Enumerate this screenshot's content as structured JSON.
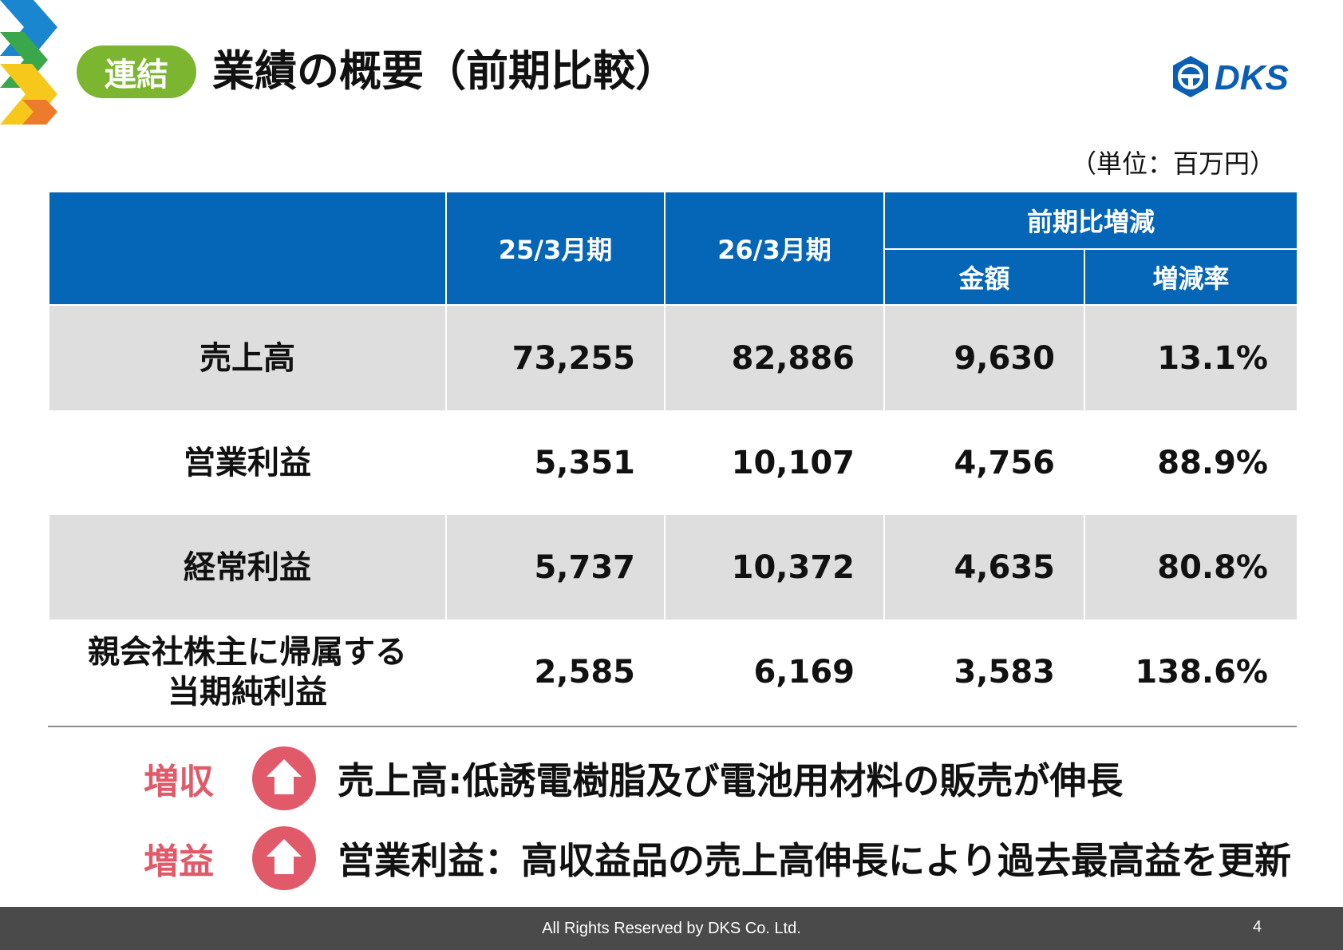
{
  "header": {
    "badge": "連結",
    "title": "業績の概要（前期比較）",
    "brand": "DKS"
  },
  "unit_note": "（単位：百万円）",
  "table": {
    "col_fy25": "25/3月期",
    "col_fy26": "26/3月期",
    "col_change": "前期比増減",
    "col_amount": "金額",
    "col_rate": "増減率",
    "rows": [
      {
        "label": "売上高",
        "label2": "",
        "fy25": "73,255",
        "fy26": "82,886",
        "amount": "9,630",
        "rate": "13.1%"
      },
      {
        "label": "営業利益",
        "label2": "",
        "fy25": "5,351",
        "fy26": "10,107",
        "amount": "4,756",
        "rate": "88.9%"
      },
      {
        "label": "経常利益",
        "label2": "",
        "fy25": "5,737",
        "fy26": "10,372",
        "amount": "4,635",
        "rate": "80.8%"
      },
      {
        "label": "親会社株主に帰属する",
        "label2": "当期純利益",
        "fy25": "2,585",
        "fy26": "6,169",
        "amount": "3,583",
        "rate": "138.6%"
      }
    ]
  },
  "notes": [
    {
      "tag": "増収",
      "icon": "up-arrow-icon",
      "text": "売上高:低誘電樹脂及び電池用材料の販売が伸長"
    },
    {
      "tag": "増益",
      "icon": "up-arrow-icon",
      "text": "営業利益：高収益品の売上高伸長により過去最高益を更新"
    }
  ],
  "footer": {
    "copyright": "All Rights Reserved by DKS Co. Ltd.",
    "page_number": "4"
  },
  "colors": {
    "header_blue": "#0566b7",
    "badge_green": "#7cb52f",
    "note_pink": "#e05a6a",
    "row_shade": "#dedede"
  }
}
